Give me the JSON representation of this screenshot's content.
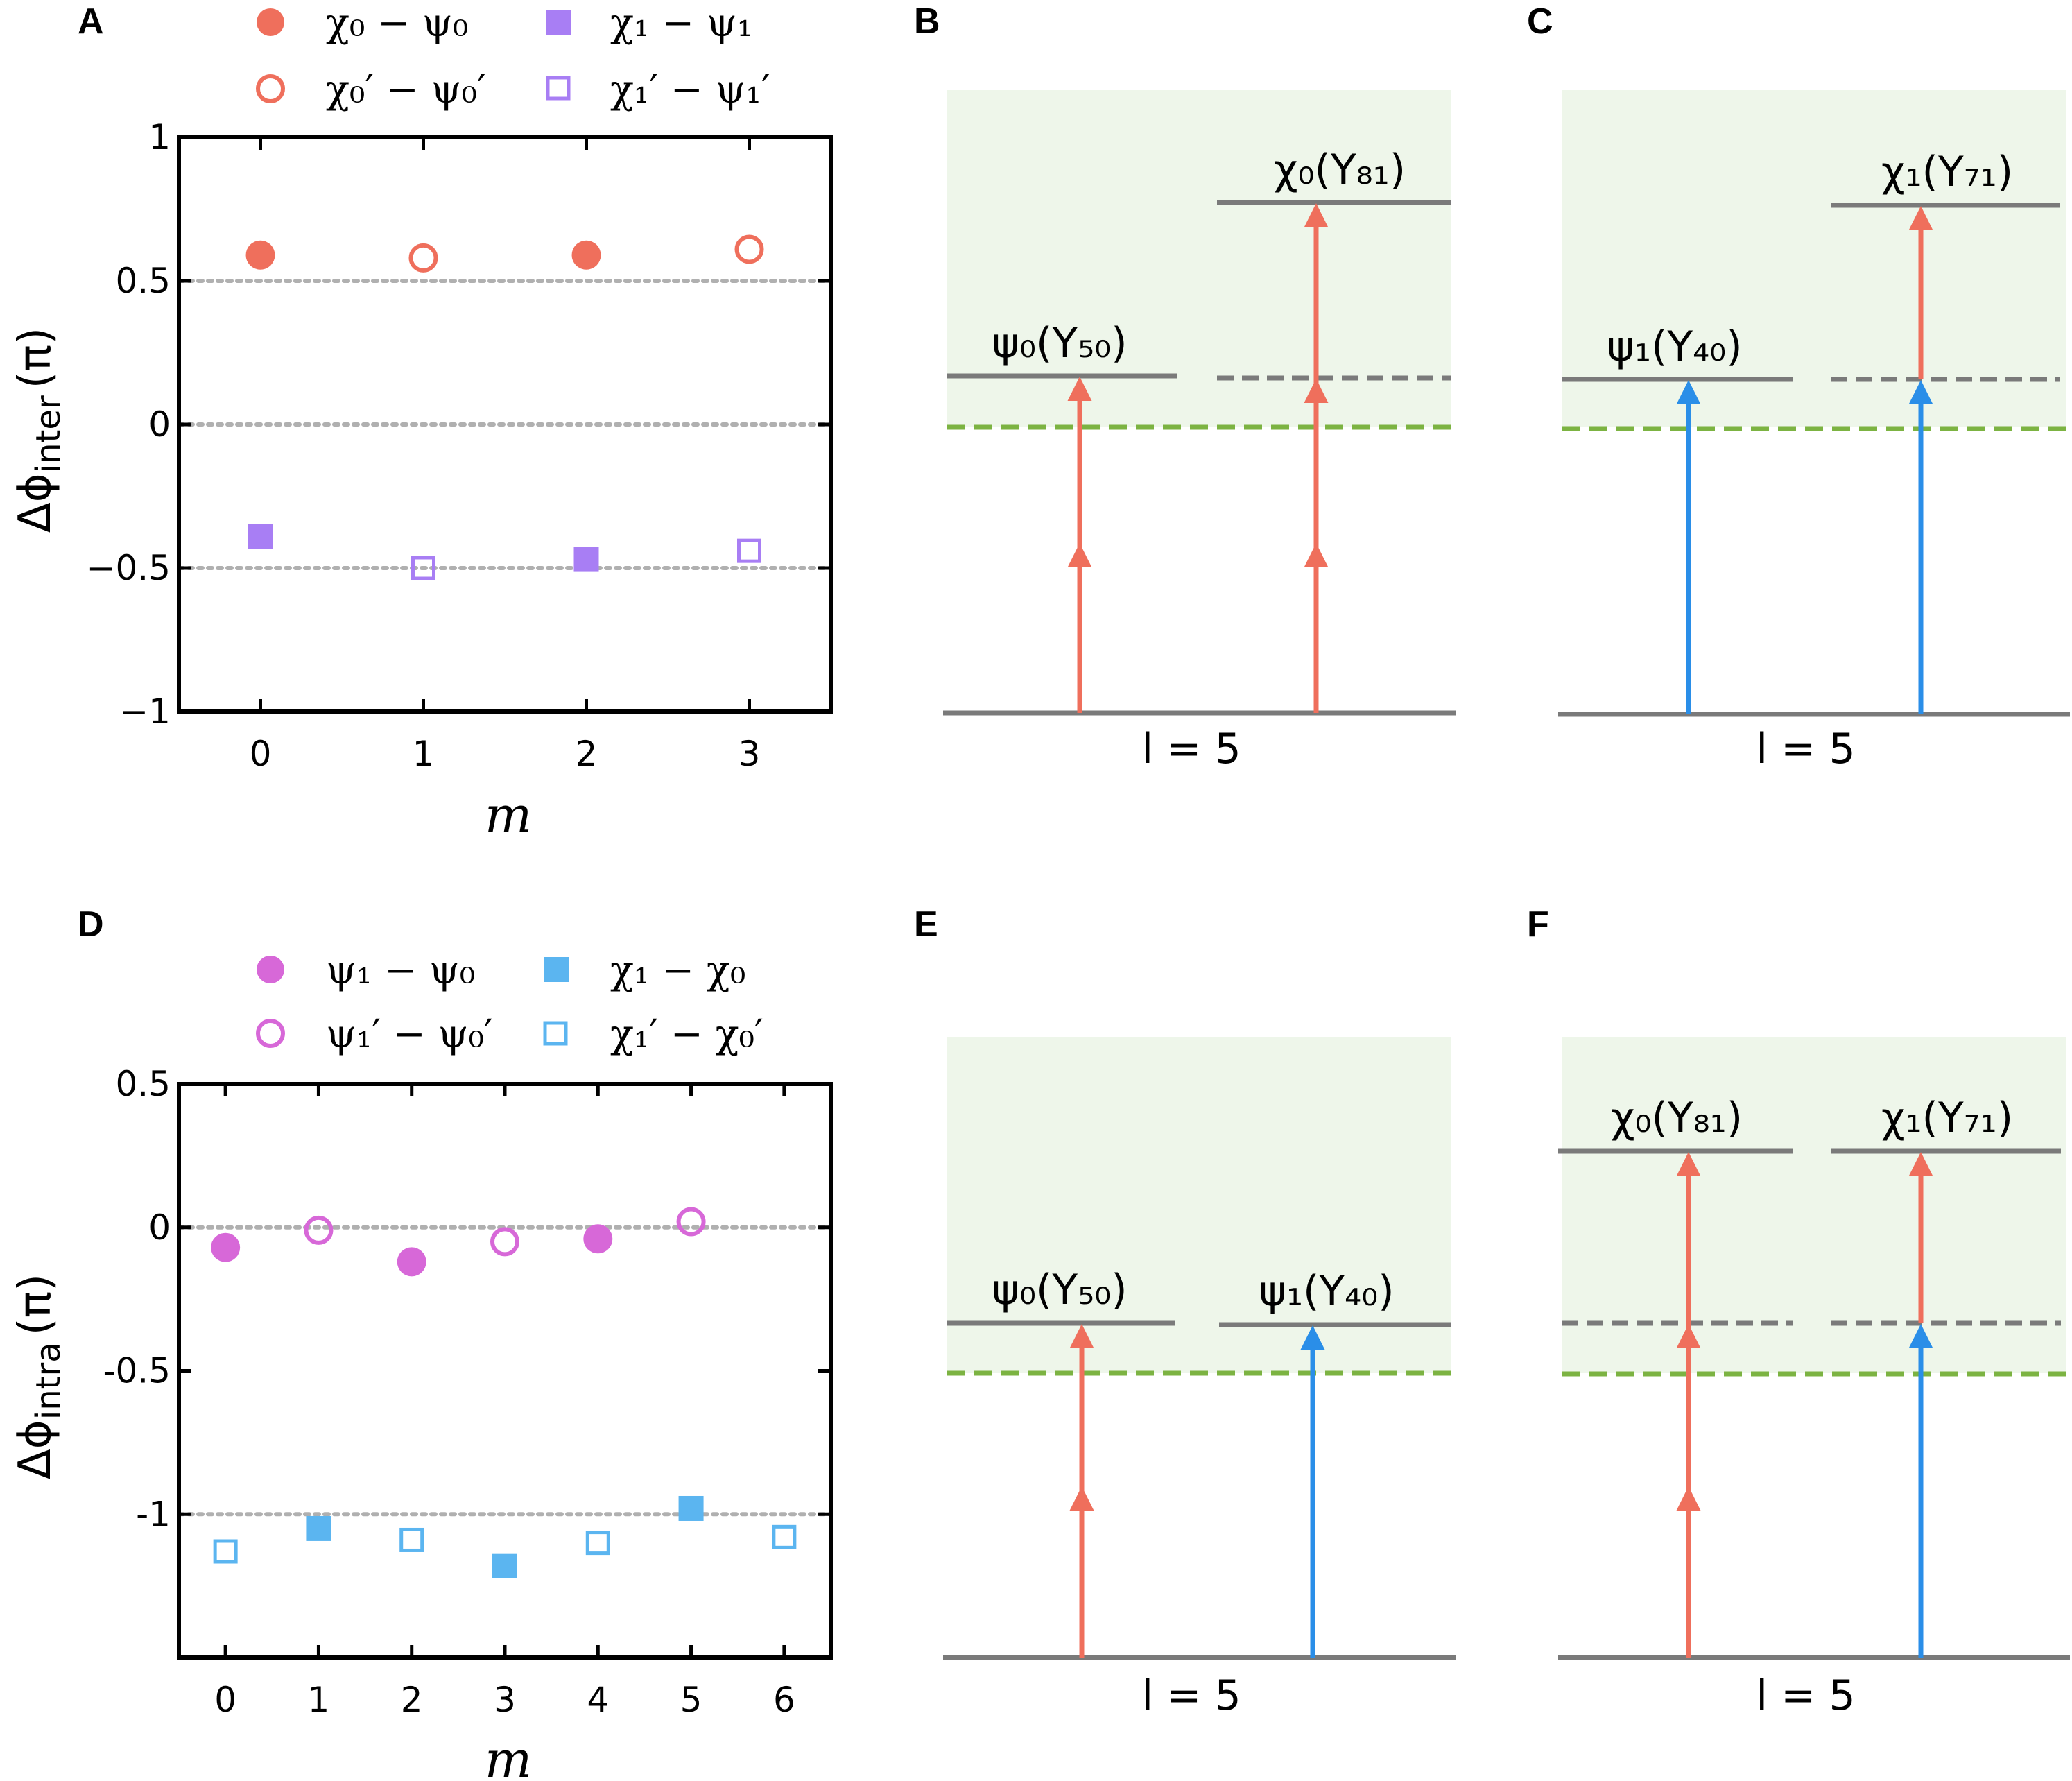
{
  "colors": {
    "salmon": "#ef6f5c",
    "purple": "#a87ef4",
    "magenta": "#d768d8",
    "skyblue": "#5bb5f0",
    "arrow_blue": "#2a8ee8",
    "level_gray": "#7a7a7a",
    "threshold_green": "#7cb342",
    "continuum_bg": "#eef6ea",
    "grid_gray": "#b0b0b0"
  },
  "chart_data": [
    {
      "panel": "A",
      "type": "scatter",
      "xlabel": "m",
      "ylabel_main": "Δϕ",
      "ylabel_sub": "inter",
      "ylabel_unit": "(π)",
      "xlim": [
        -0.5,
        3.5
      ],
      "ylim": [
        -1,
        1
      ],
      "xticks": [
        0,
        1,
        2,
        3
      ],
      "yticks": [
        1,
        0.5,
        0,
        -0.5,
        -1
      ],
      "ytick_labels": [
        "1",
        "0.5",
        "0",
        "−0.5",
        "−1"
      ],
      "hlines": [
        0.5,
        0,
        -0.5
      ],
      "legend_location": "top",
      "series": [
        {
          "name": "χ₀ − ψ₀",
          "marker": "circle-filled",
          "color": "salmon",
          "points": [
            {
              "x": 0,
              "y": 0.59
            },
            {
              "x": 2,
              "y": 0.59
            }
          ]
        },
        {
          "name": "χ₀′ − ψ₀′",
          "marker": "circle-open",
          "color": "salmon",
          "points": [
            {
              "x": 1,
              "y": 0.58
            },
            {
              "x": 3,
              "y": 0.61
            }
          ]
        },
        {
          "name": "χ₁ − ψ₁",
          "marker": "square-filled",
          "color": "purple",
          "points": [
            {
              "x": 0,
              "y": -0.39
            },
            {
              "x": 2,
              "y": -0.47
            }
          ]
        },
        {
          "name": "χ₁′ − ψ₁′",
          "marker": "square-open",
          "color": "purple",
          "points": [
            {
              "x": 1,
              "y": -0.5
            },
            {
              "x": 3,
              "y": -0.44
            }
          ]
        }
      ]
    },
    {
      "panel": "D",
      "type": "scatter",
      "xlabel": "m",
      "ylabel_main": "Δϕ",
      "ylabel_sub": "intra",
      "ylabel_unit": "(π)",
      "xlim": [
        -0.5,
        6.5
      ],
      "ylim": [
        -1.5,
        0.5
      ],
      "xticks": [
        0,
        1,
        2,
        3,
        4,
        5,
        6
      ],
      "yticks": [
        0.5,
        0,
        -0.5,
        -1
      ],
      "ytick_labels": [
        "0.5",
        "0",
        "-0.5",
        "-1"
      ],
      "hlines": [
        0,
        -1
      ],
      "legend_location": "top",
      "series": [
        {
          "name": "ψ₁ − ψ₀",
          "marker": "circle-filled",
          "color": "magenta",
          "points": [
            {
              "x": 0,
              "y": -0.07
            },
            {
              "x": 2,
              "y": -0.12
            },
            {
              "x": 4,
              "y": -0.04
            }
          ]
        },
        {
          "name": "ψ₁′ − ψ₀′",
          "marker": "circle-open",
          "color": "magenta",
          "points": [
            {
              "x": 1,
              "y": -0.01
            },
            {
              "x": 3,
              "y": -0.05
            },
            {
              "x": 5,
              "y": 0.02
            }
          ]
        },
        {
          "name": "χ₁ − χ₀",
          "marker": "square-filled",
          "color": "skyblue",
          "points": [
            {
              "x": 1,
              "y": -1.05
            },
            {
              "x": 3,
              "y": -1.18
            },
            {
              "x": 5,
              "y": -0.98
            }
          ]
        },
        {
          "name": "χ₁′ − χ₀′",
          "marker": "square-open",
          "color": "skyblue",
          "points": [
            {
              "x": 0,
              "y": -1.13
            },
            {
              "x": 2,
              "y": -1.09
            },
            {
              "x": 4,
              "y": -1.1
            },
            {
              "x": 6,
              "y": -1.08
            }
          ]
        }
      ]
    }
  ],
  "diagrams": {
    "ground_label": "l = 5",
    "B": {
      "label": "B",
      "left_state": "ψ₀(Y₅₀)",
      "right_state": "χ₀(Y₈₁)"
    },
    "C": {
      "label": "C",
      "left_state": "ψ₁(Y₄₀)",
      "right_state": "χ₁(Y₇₁)"
    },
    "E": {
      "label": "E",
      "left_state": "ψ₀(Y₅₀)",
      "right_state": "ψ₁(Y₄₀)"
    },
    "F": {
      "label": "F",
      "left_state": "χ₀(Y₈₁)",
      "right_state": "χ₁(Y₇₁)"
    }
  }
}
